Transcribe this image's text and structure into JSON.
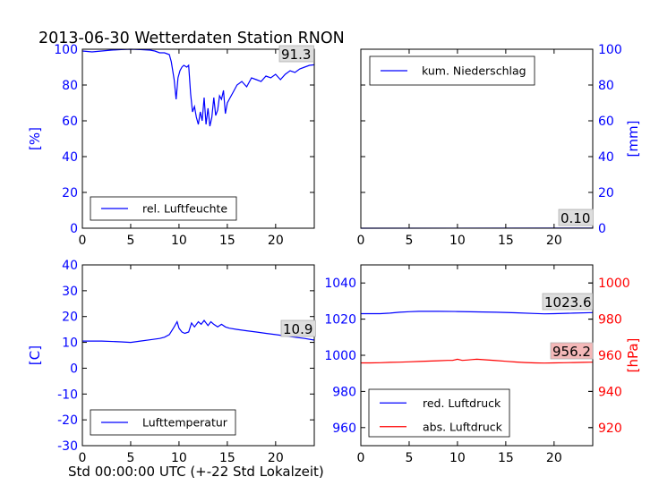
{
  "title": "2013-06-30 Wetterdaten Station RNON",
  "footer_label": "Std 00:00:00 UTC (+-22 Std Lokalzeit)",
  "colors": {
    "blue": "#0000ff",
    "red": "#ff0000",
    "axis": "#000000",
    "box_fill": "#dddddd"
  },
  "chart_data": [
    {
      "type": "line",
      "panel": "top-left",
      "ylabel": "[%]",
      "xlim": [
        0,
        24
      ],
      "ylim": [
        0,
        100
      ],
      "xticks": [
        0,
        5,
        10,
        15,
        20
      ],
      "yticks": [
        0,
        20,
        40,
        60,
        80,
        100
      ],
      "legend": "lower-center",
      "series": [
        {
          "name": "rel. Luftfeuchte",
          "color": "#0000ff",
          "x": [
            0,
            1,
            2,
            3,
            4,
            5,
            6,
            7,
            7.5,
            8,
            8.5,
            9,
            9.2,
            9.5,
            9.7,
            9.9,
            10.1,
            10.3,
            10.5,
            10.8,
            11,
            11.2,
            11.4,
            11.6,
            11.8,
            12,
            12.2,
            12.4,
            12.6,
            12.8,
            13,
            13.2,
            13.4,
            13.6,
            13.8,
            14,
            14.2,
            14.4,
            14.6,
            14.8,
            15,
            15.3,
            15.6,
            16,
            16.5,
            17,
            17.5,
            18,
            18.5,
            19,
            19.5,
            20,
            20.5,
            21,
            21.5,
            22,
            22.5,
            23,
            23.5,
            24
          ],
          "y": [
            99,
            98.5,
            99,
            99.5,
            99.8,
            100,
            99.8,
            99.5,
            99,
            98,
            98,
            97,
            93,
            83,
            72,
            84,
            88,
            90,
            91,
            90,
            91,
            75,
            65,
            68,
            62,
            58,
            65,
            60,
            73,
            58,
            67,
            57,
            62,
            73,
            63,
            66,
            74,
            72,
            77,
            64,
            70,
            73,
            76,
            80,
            82,
            79,
            84,
            83,
            82,
            85,
            84,
            86,
            83,
            86,
            88,
            87,
            89,
            90,
            91,
            91.3
          ]
        }
      ],
      "current_value": "91.3"
    },
    {
      "type": "line",
      "panel": "top-right",
      "ylabel": "[mm]",
      "xlim": [
        0,
        24
      ],
      "ylim": [
        0,
        100
      ],
      "xticks": [
        0,
        5,
        10,
        15,
        20
      ],
      "yticks": [
        0,
        20,
        40,
        60,
        80,
        100
      ],
      "legend": "upper-left",
      "series": [
        {
          "name": "kum. Niederschlag",
          "color": "#0000ff",
          "x": [
            0,
            24
          ],
          "y": [
            0,
            0.1
          ]
        }
      ],
      "current_value": "0.10"
    },
    {
      "type": "line",
      "panel": "bottom-left",
      "ylabel": "[C]",
      "xlim": [
        0,
        24
      ],
      "ylim": [
        -30,
        40
      ],
      "xticks": [
        0,
        5,
        10,
        15,
        20
      ],
      "yticks": [
        -30,
        -20,
        -10,
        0,
        10,
        20,
        30,
        40
      ],
      "legend": "lower-center",
      "series": [
        {
          "name": "Lufttemperatur",
          "color": "#0000ff",
          "x": [
            0,
            2,
            4,
            5,
            6,
            7,
            8,
            8.5,
            9,
            9.5,
            9.8,
            10,
            10.3,
            10.6,
            11,
            11.3,
            11.6,
            12,
            12.3,
            12.6,
            13,
            13.3,
            13.6,
            14,
            14.4,
            14.8,
            15.2,
            16,
            17,
            18,
            19,
            20,
            21,
            22,
            23,
            24
          ],
          "y": [
            10.5,
            10.5,
            10.2,
            10,
            10.5,
            11,
            11.5,
            12,
            13,
            16,
            18,
            15.5,
            14,
            13.5,
            14,
            17.5,
            16,
            18,
            17,
            18.5,
            16.5,
            18,
            17,
            16,
            17,
            16,
            15.5,
            15,
            14.5,
            14,
            13.5,
            13,
            12.5,
            12,
            11.5,
            10.9
          ]
        }
      ],
      "current_value": "10.9"
    },
    {
      "type": "line",
      "panel": "bottom-right",
      "ylabel": "[hPa]",
      "xlim": [
        0,
        24
      ],
      "ylim": [
        950,
        1050
      ],
      "ylim_right": [
        910,
        1010
      ],
      "xticks": [
        0,
        5,
        10,
        15,
        20
      ],
      "yticks": [
        960,
        980,
        1000,
        1020,
        1040
      ],
      "yticks_right": [
        920,
        940,
        960,
        980,
        1000
      ],
      "legend": "lower-left",
      "series": [
        {
          "name": "red. Luftdruck",
          "color": "#0000ff",
          "x": [
            0,
            2,
            3,
            4,
            5,
            6,
            8,
            10,
            12,
            14,
            16,
            18,
            19,
            20,
            22,
            24
          ],
          "y": [
            1023,
            1023,
            1023.3,
            1023.8,
            1024.1,
            1024.3,
            1024.3,
            1024.2,
            1024,
            1023.8,
            1023.5,
            1023.1,
            1022.9,
            1023,
            1023.3,
            1023.6
          ]
        },
        {
          "name": "abs. Luftdruck",
          "color": "#ff0000",
          "axis": "right",
          "x": [
            0,
            1,
            2,
            3,
            4,
            5,
            6,
            7,
            8,
            9,
            9.5,
            10,
            10.5,
            11,
            11.5,
            12,
            13,
            14,
            15,
            16,
            17,
            18,
            19,
            20,
            21,
            22,
            23,
            24
          ],
          "y": [
            955.8,
            955.8,
            955.9,
            956.1,
            956.2,
            956.4,
            956.6,
            956.8,
            957,
            957.2,
            957.2,
            957.8,
            957.2,
            957.4,
            957.6,
            957.8,
            957.5,
            957.1,
            956.7,
            956.3,
            956,
            955.8,
            955.7,
            955.8,
            955.9,
            956,
            956.1,
            956.2
          ]
        }
      ],
      "current_value_left": "1023.6",
      "current_value_right": "956.2"
    }
  ]
}
